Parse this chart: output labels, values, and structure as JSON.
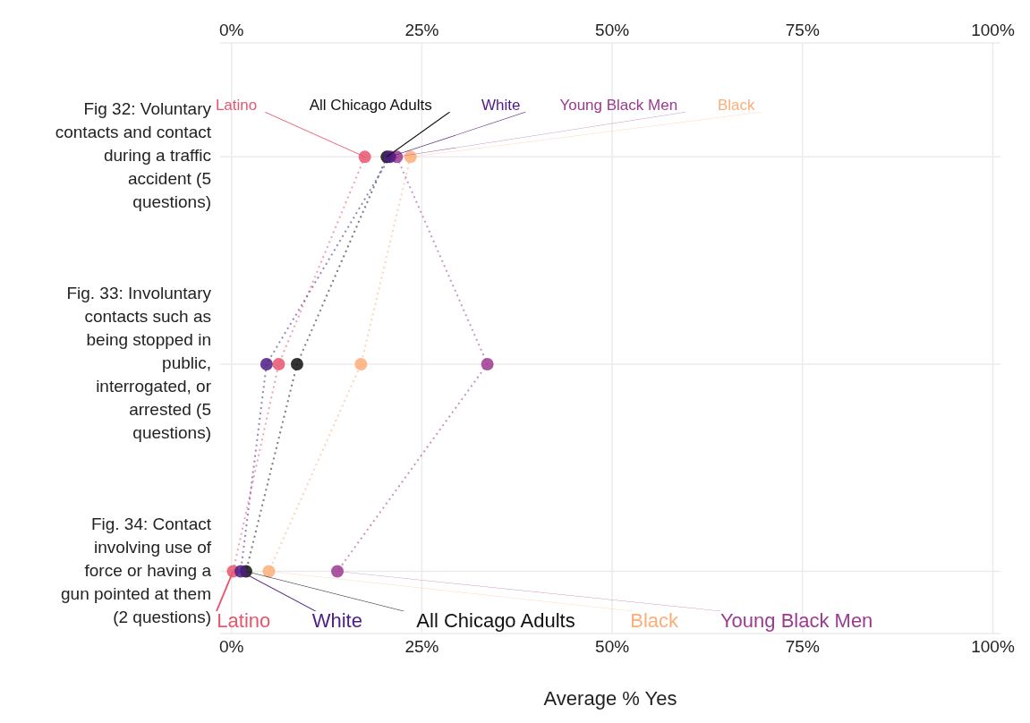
{
  "chart_data": {
    "type": "line",
    "orientation": "horizontal",
    "xlabel": "Average % Yes",
    "categories": [
      "Fig 32: Voluntary contacts and contact during a traffic accident (5 questions)",
      "Fig. 33: Involuntary contacts such as being stopped in public, interrogated, or arrested (5 questions)",
      "Fig. 34: Contact involving use of force or having a gun pointed at them (2 questions)"
    ],
    "series": [
      {
        "name": "Latino",
        "color": "#e8566e",
        "values": [
          17.5,
          6.2,
          0.2
        ]
      },
      {
        "name": "All Chicago Adults",
        "color": "#111111",
        "values": [
          20.4,
          8.6,
          1.9
        ]
      },
      {
        "name": "Black",
        "color": "#fdae78",
        "values": [
          23.5,
          17.0,
          4.9
        ]
      },
      {
        "name": "Young Black Men",
        "color": "#9c3a8f",
        "values": [
          21.7,
          33.6,
          13.9
        ]
      },
      {
        "name": "White",
        "color": "#4f1c84",
        "values": [
          20.8,
          4.6,
          1.2
        ]
      }
    ],
    "xlim": [
      -1.5,
      101
    ],
    "xticks": [
      {
        "value": 0,
        "label": "0%"
      },
      {
        "value": 25,
        "label": "25%"
      },
      {
        "value": 50,
        "label": "50%"
      },
      {
        "value": 75,
        "label": "75%"
      },
      {
        "value": 100,
        "label": "100%"
      }
    ],
    "x2lim": [
      -1.5,
      101
    ],
    "x2ticks": [
      {
        "value": 0,
        "label": "0%"
      },
      {
        "value": 25,
        "label": "25%"
      },
      {
        "value": 50,
        "label": "50%"
      },
      {
        "value": 75,
        "label": "75%"
      },
      {
        "value": 100,
        "label": "100%"
      }
    ],
    "grid": true,
    "marker": "circle",
    "line_style": "dotted"
  }
}
